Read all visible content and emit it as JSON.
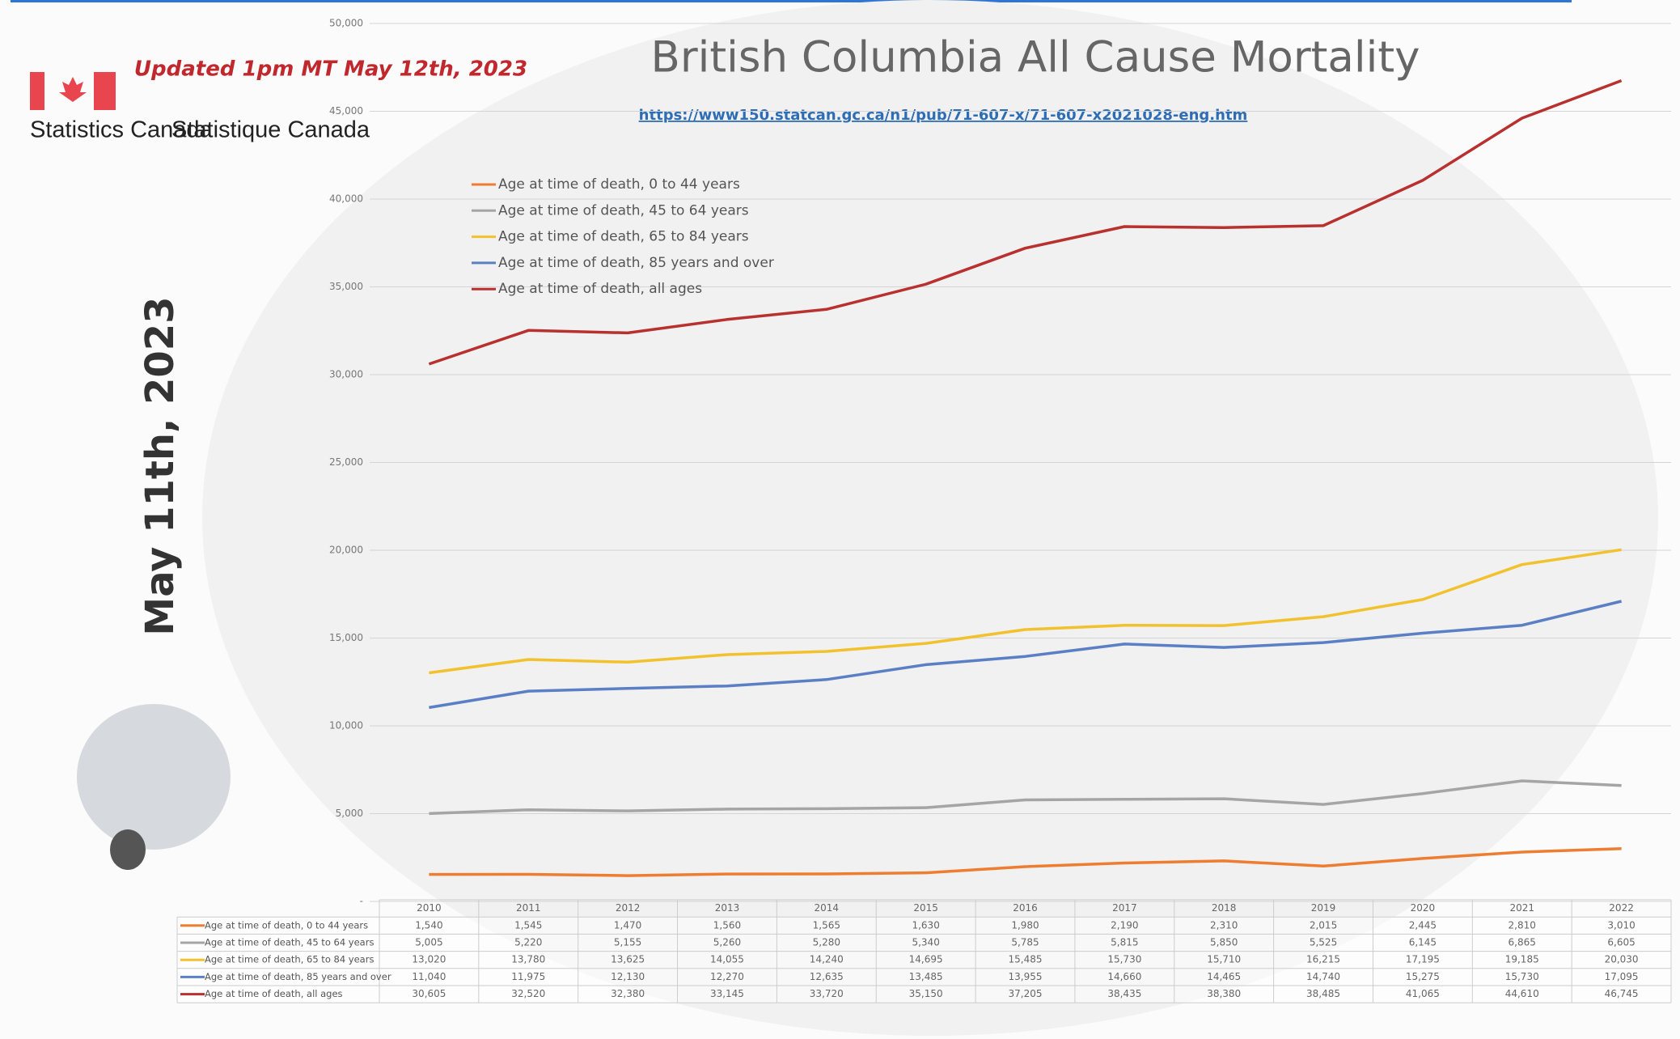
{
  "header": {
    "updated": "Updated 1pm MT May 12th, 2023",
    "org_en": "Statistics Canada",
    "org_fr": "Statistique Canada",
    "date": "May 11th, 2023"
  },
  "chart_data": {
    "type": "line",
    "title": "British Columbia All Cause Mortality",
    "subtitle": "https://www150.statcan.gc.ca/n1/pub/71-607-x/71-607-x2021028-eng.htm",
    "categories": [
      "2010",
      "2011",
      "2012",
      "2013",
      "2014",
      "2015",
      "2016",
      "2017",
      "2018",
      "2019",
      "2020",
      "2021",
      "2022"
    ],
    "series": [
      {
        "name": "Age at time of death, 0 to 44 years",
        "color": "#ed7d31",
        "values": [
          1540,
          1545,
          1470,
          1560,
          1565,
          1630,
          1980,
          2190,
          2310,
          2015,
          2445,
          2810,
          3010
        ],
        "value_labels": [
          "1,540",
          "1,545",
          "1,470",
          "1,560",
          "1,565",
          "1,630",
          "1,980",
          "2,190",
          "2,310",
          "2,015",
          "2,445",
          "2,810",
          "3,010"
        ]
      },
      {
        "name": "Age at time of death, 45 to 64 years",
        "color": "#a5a5a5",
        "values": [
          5005,
          5220,
          5155,
          5260,
          5280,
          5340,
          5785,
          5815,
          5850,
          5525,
          6145,
          6865,
          6605
        ],
        "value_labels": [
          "5,005",
          "5,220",
          "5,155",
          "5,260",
          "5,280",
          "5,340",
          "5,785",
          "5,815",
          "5,850",
          "5,525",
          "6,145",
          "6,865",
          "6,605"
        ]
      },
      {
        "name": "Age at time of death, 65 to 84 years",
        "color": "#f2c12e",
        "values": [
          13020,
          13780,
          13625,
          14055,
          14240,
          14695,
          15485,
          15730,
          15710,
          16215,
          17195,
          19185,
          20030
        ],
        "value_labels": [
          "13,020",
          "13,780",
          "13,625",
          "14,055",
          "14,240",
          "14,695",
          "15,485",
          "15,730",
          "15,710",
          "16,215",
          "17,195",
          "19,185",
          "20,030"
        ]
      },
      {
        "name": "Age at time of death, 85 years and over",
        "color": "#5b7fc4",
        "values": [
          11040,
          11975,
          12130,
          12270,
          12635,
          13485,
          13955,
          14660,
          14465,
          14740,
          15275,
          15730,
          17095
        ],
        "value_labels": [
          "11,040",
          "11,975",
          "12,130",
          "12,270",
          "12,635",
          "13,485",
          "13,955",
          "14,660",
          "14,465",
          "14,740",
          "15,275",
          "15,730",
          "17,095"
        ]
      },
      {
        "name": "Age at time of death, all ages",
        "color": "#b8312f",
        "values": [
          30605,
          32520,
          32380,
          33145,
          33720,
          35150,
          37205,
          38435,
          38380,
          38485,
          41065,
          44610,
          46745
        ],
        "value_labels": [
          "30,605",
          "32,520",
          "32,380",
          "33,145",
          "33,720",
          "35,150",
          "37,205",
          "38,435",
          "38,380",
          "38,485",
          "41,065",
          "44,610",
          "46,745"
        ]
      }
    ],
    "ylim": [
      0,
      50000
    ],
    "yticks": [
      {
        "value": 0,
        "label": "-"
      },
      {
        "value": 5000,
        "label": "5,000"
      },
      {
        "value": 10000,
        "label": "10,000"
      },
      {
        "value": 15000,
        "label": "15,000"
      },
      {
        "value": 20000,
        "label": "20,000"
      },
      {
        "value": 25000,
        "label": "25,000"
      },
      {
        "value": 30000,
        "label": "30,000"
      },
      {
        "value": 35000,
        "label": "35,000"
      },
      {
        "value": 40000,
        "label": "40,000"
      },
      {
        "value": 45000,
        "label": "45,000"
      },
      {
        "value": 50000,
        "label": "50,000"
      }
    ],
    "grid": true
  }
}
